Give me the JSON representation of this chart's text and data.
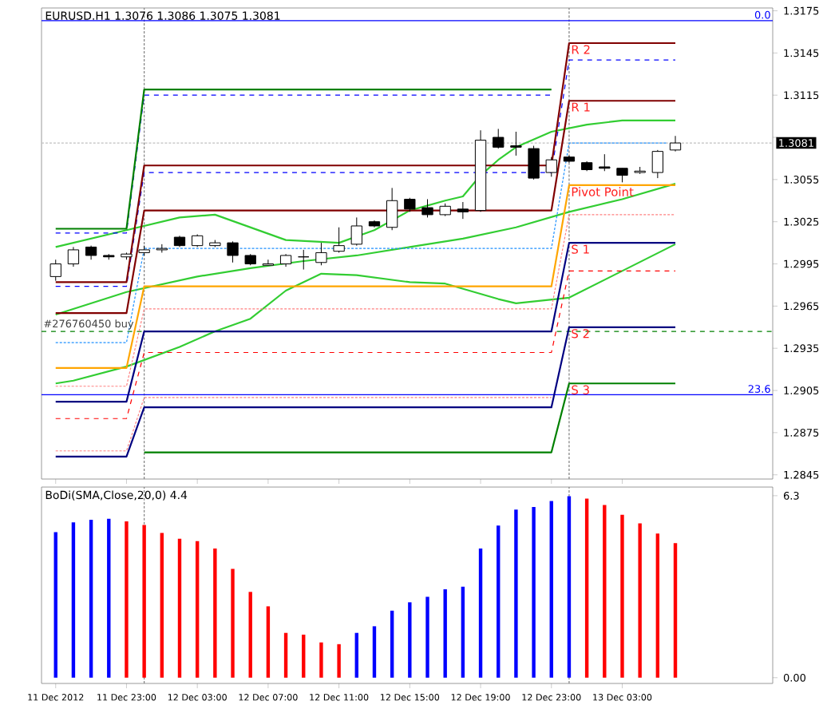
{
  "chart_data": [
    {
      "type": "candlestick",
      "title": "EURUSD.H1  1.3076 1.3086 1.3075 1.3081",
      "x": [
        "2012-12-11T19:00",
        "2012-12-11T20:00",
        "2012-12-11T21:00",
        "2012-12-11T22:00",
        "2012-12-11T23:00",
        "2012-12-12T00:00",
        "2012-12-12T01:00",
        "2012-12-12T02:00",
        "2012-12-12T03:00",
        "2012-12-12T04:00",
        "2012-12-12T05:00",
        "2012-12-12T06:00",
        "2012-12-12T07:00",
        "2012-12-12T08:00",
        "2012-12-12T09:00",
        "2012-12-12T10:00",
        "2012-12-12T11:00",
        "2012-12-12T12:00",
        "2012-12-12T13:00",
        "2012-12-12T14:00",
        "2012-12-12T15:00",
        "2012-12-12T16:00",
        "2012-12-12T17:00",
        "2012-12-12T18:00",
        "2012-12-12T19:00",
        "2012-12-12T20:00",
        "2012-12-12T21:00",
        "2012-12-12T22:00",
        "2012-12-12T23:00",
        "2012-12-13T00:00",
        "2012-12-13T01:00",
        "2012-12-13T02:00",
        "2012-12-13T03:00",
        "2012-12-13T04:00",
        "2012-12-13T05:00",
        "2012-12-13T06:00"
      ],
      "ohlc": [
        [
          1.2986,
          1.2998,
          1.2983,
          1.2995
        ],
        [
          1.2995,
          1.3007,
          1.2993,
          1.3005
        ],
        [
          1.3007,
          1.3008,
          1.2998,
          1.3001
        ],
        [
          1.3001,
          1.3002,
          1.2998,
          1.3
        ],
        [
          1.3,
          1.3003,
          1.2998,
          1.3002
        ],
        [
          1.3003,
          1.3008,
          1.3001,
          1.3005
        ],
        [
          1.3005,
          1.3009,
          1.3003,
          1.3006
        ],
        [
          1.3014,
          1.3015,
          1.3007,
          1.3008
        ],
        [
          1.3008,
          1.3016,
          1.3007,
          1.3015
        ],
        [
          1.3008,
          1.3012,
          1.3007,
          1.301
        ],
        [
          1.301,
          1.3011,
          1.2996,
          1.3001
        ],
        [
          1.3001,
          1.3002,
          1.2994,
          1.2995
        ],
        [
          1.2994,
          1.2998,
          1.2994,
          1.2995
        ],
        [
          1.2995,
          1.3002,
          1.2993,
          1.3001
        ],
        [
          1.3,
          1.3005,
          1.2991,
          1.3
        ],
        [
          1.2996,
          1.301,
          1.2994,
          1.3003
        ],
        [
          1.3004,
          1.3021,
          1.3003,
          1.3008
        ],
        [
          1.3009,
          1.3028,
          1.3008,
          1.3022
        ],
        [
          1.3025,
          1.3026,
          1.3021,
          1.3022
        ],
        [
          1.3021,
          1.3049,
          1.3019,
          1.304
        ],
        [
          1.3041,
          1.3042,
          1.3032,
          1.3034
        ],
        [
          1.3035,
          1.3041,
          1.3028,
          1.303
        ],
        [
          1.303,
          1.3038,
          1.3029,
          1.3036
        ],
        [
          1.3034,
          1.3039,
          1.3027,
          1.3032
        ],
        [
          1.3033,
          1.309,
          1.3032,
          1.3083
        ],
        [
          1.3085,
          1.3091,
          1.3077,
          1.3078
        ],
        [
          1.3079,
          1.3089,
          1.3072,
          1.3078
        ],
        [
          1.3077,
          1.3079,
          1.3055,
          1.3056
        ],
        [
          1.306,
          1.3071,
          1.3057,
          1.3069
        ],
        [
          1.3071,
          1.3072,
          1.3067,
          1.3068
        ],
        [
          1.3067,
          1.3068,
          1.3061,
          1.3062
        ],
        [
          1.3064,
          1.3073,
          1.3061,
          1.3063
        ],
        [
          1.3063,
          1.3063,
          1.3053,
          1.3058
        ],
        [
          1.306,
          1.3064,
          1.3059,
          1.3061
        ],
        [
          1.306,
          1.3076,
          1.3056,
          1.3075
        ],
        [
          1.3076,
          1.3086,
          1.3075,
          1.3081
        ]
      ],
      "xlim": [
        "2012-12-11T18:12",
        "2012-12-13T11:30"
      ],
      "ylim": [
        1.2842,
        1.3177
      ],
      "xticks": [
        {
          "value": "2012-12-11T19:00",
          "label": null
        },
        {
          "value": "2012-12-11T23:00",
          "label": null
        },
        {
          "value": "2012-12-12T03:00",
          "label": null
        },
        {
          "value": "2012-12-12T07:00",
          "label": null
        },
        {
          "value": "2012-12-12T11:00",
          "label": null
        },
        {
          "value": "2012-12-12T15:00",
          "label": null
        },
        {
          "value": "2012-12-12T19:00",
          "label": null
        },
        {
          "value": "2012-12-12T23:00",
          "label": null
        },
        {
          "value": "2012-12-13T03:00",
          "label": null
        }
      ],
      "yticks": [
        1.3175,
        1.3145,
        1.3115,
        {
          "value": 1.3085,
          "label": null
        },
        1.3055,
        1.3025,
        1.2995,
        1.2965,
        1.2935,
        1.2905,
        1.2875,
        1.2845
      ],
      "tick_labels": "y",
      "series": [
        {
          "type": "line",
          "color": "#32cd32",
          "x": [
            "2012-12-11T19:00",
            "2012-12-11T23:00",
            "2012-12-12T02:00",
            "2012-12-12T04:00",
            "2012-12-12T06:00",
            "2012-12-12T08:00",
            "2012-12-12T11:00",
            "2012-12-12T13:00",
            "2012-12-12T15:00",
            "2012-12-12T17:00",
            "2012-12-12T18:00",
            "2012-12-12T19:00",
            "2012-12-12T20:00",
            "2012-12-12T21:00",
            "2012-12-12T23:00",
            "2012-12-13T01:00",
            "2012-12-13T03:00",
            "2012-12-13T06:00"
          ],
          "values": [
            1.3007,
            1.3019,
            1.3028,
            1.303,
            1.3021,
            1.3012,
            1.301,
            1.3019,
            1.3033,
            1.304,
            1.3043,
            1.3058,
            1.3069,
            1.3078,
            1.3089,
            1.3094,
            1.3097,
            1.3097
          ]
        },
        {
          "type": "line",
          "color": "#32cd32",
          "x": [
            "2012-12-11T19:00",
            "2012-12-11T23:00",
            "2012-12-12T03:00",
            "2012-12-12T06:00",
            "2012-12-12T09:00",
            "2012-12-12T12:00",
            "2012-12-12T15:00",
            "2012-12-12T18:00",
            "2012-12-12T21:00",
            "2012-12-13T00:00",
            "2012-12-13T03:00",
            "2012-12-13T06:00"
          ],
          "values": [
            1.2959,
            1.2975,
            1.2986,
            1.2992,
            1.2997,
            1.3001,
            1.3007,
            1.3013,
            1.3021,
            1.3032,
            1.3041,
            1.3052
          ]
        },
        {
          "type": "line",
          "color": "#32cd32",
          "x": [
            "2012-12-11T19:00",
            "2012-12-11T20:00",
            "2012-12-11T23:00",
            "2012-12-12T02:00",
            "2012-12-12T04:00",
            "2012-12-12T06:00",
            "2012-12-12T08:00",
            "2012-12-12T10:00",
            "2012-12-12T12:00",
            "2012-12-12T15:00",
            "2012-12-12T17:00",
            "2012-12-12T20:00",
            "2012-12-12T21:00",
            "2012-12-13T00:00",
            "2012-12-13T03:00",
            "2012-12-13T06:00"
          ],
          "values": [
            1.291,
            1.2912,
            1.2922,
            1.2936,
            1.2947,
            1.2956,
            1.2976,
            1.2988,
            1.2987,
            1.2982,
            1.2981,
            1.297,
            1.2967,
            1.2971,
            1.299,
            1.3009
          ]
        },
        {
          "type": "line",
          "color": "#0000ff",
          "line_style": "dashed",
          "x": [
            "2012-12-11T19:00",
            "2012-12-11T23:00",
            "2012-12-12T00:00",
            "2012-12-12T23:00"
          ],
          "values": [
            1.3017,
            1.3017,
            1.3115,
            1.3115
          ]
        },
        {
          "type": "line",
          "color": "#0000ff",
          "line_style": "dashed",
          "x": [
            "2012-12-11T19:00",
            "2012-12-11T23:00",
            "2012-12-12T00:00",
            "2012-12-12T23:00",
            "2012-12-13T00:00",
            "2012-12-13T06:00"
          ],
          "values": [
            1.2979,
            1.2979,
            1.306,
            1.306,
            1.314,
            1.314
          ]
        },
        {
          "type": "line",
          "color": "#1e90ff",
          "line_style": "dotted",
          "x": [
            "2012-12-11T19:00",
            "2012-12-11T23:00",
            "2012-12-12T00:00",
            "2012-12-12T23:00",
            "2012-12-13T00:00",
            "2012-12-13T05:30"
          ],
          "values": [
            1.2939,
            1.2939,
            1.3006,
            1.3006,
            1.3081,
            1.3081
          ]
        },
        {
          "type": "line",
          "color": "#ff8080",
          "line_style": "dotted",
          "x": [
            "2012-12-11T19:00",
            "2012-12-11T23:00",
            "2012-12-12T00:00",
            "2012-12-12T23:00",
            "2012-12-13T00:00",
            "2012-12-13T06:00"
          ],
          "values": [
            1.2908,
            1.2908,
            1.2963,
            1.2963,
            1.303,
            1.303
          ]
        },
        {
          "type": "line",
          "color": "#ff0000",
          "line_style": "dashed",
          "x": [
            "2012-12-11T19:00",
            "2012-12-11T23:00",
            "2012-12-12T00:00",
            "2012-12-12T23:00",
            "2012-12-13T00:00",
            "2012-12-13T06:00"
          ],
          "values": [
            1.2885,
            1.2885,
            1.2932,
            1.2932,
            1.299,
            1.299
          ]
        },
        {
          "type": "line",
          "color": "#ff8080",
          "line_style": "dotted",
          "x": [
            "2012-12-11T19:00",
            "2012-12-11T23:00",
            "2012-12-12T00:00",
            "2012-12-12T23:00"
          ],
          "values": [
            1.2862,
            1.2862,
            1.29,
            1.29
          ]
        },
        {
          "type": "line",
          "color": "#008000",
          "x": [
            "2012-12-11T19:00",
            "2012-12-11T23:00",
            "2012-12-12T00:00",
            "2012-12-12T23:00"
          ],
          "values": [
            1.302,
            1.302,
            1.3119,
            1.3119
          ]
        },
        {
          "type": "line",
          "name": "R 2",
          "color": "#800000",
          "x": [
            "2012-12-11T19:00",
            "2012-12-11T23:00",
            "2012-12-12T00:00",
            "2012-12-12T23:00",
            "2012-12-13T00:00",
            "2012-12-13T06:00"
          ],
          "values": [
            1.2982,
            1.2982,
            1.3065,
            1.3065,
            1.3152,
            1.3152
          ]
        },
        {
          "type": "line",
          "name": "R 1",
          "color": "#800000",
          "x": [
            "2012-12-11T19:00",
            "2012-12-11T23:00",
            "2012-12-12T00:00",
            "2012-12-12T23:00",
            "2012-12-13T00:00",
            "2012-12-13T06:00"
          ],
          "values": [
            1.296,
            1.296,
            1.3033,
            1.3033,
            1.3111,
            1.3111
          ]
        },
        {
          "type": "line",
          "name": "Pivot Point",
          "color": "#ffa500",
          "x": [
            "2012-12-11T19:00",
            "2012-12-11T23:00",
            "2012-12-12T00:00",
            "2012-12-12T23:00",
            "2012-12-13T00:00",
            "2012-12-13T06:00"
          ],
          "values": [
            1.2921,
            1.2921,
            1.2979,
            1.2979,
            1.3051,
            1.3051
          ]
        },
        {
          "type": "line",
          "name": "S 1",
          "color": "#000080",
          "x": [
            "2012-12-11T19:00",
            "2012-12-11T23:00",
            "2012-12-12T00:00",
            "2012-12-12T23:00",
            "2012-12-13T00:00",
            "2012-12-13T06:00"
          ],
          "values": [
            1.2897,
            1.2897,
            1.2947,
            1.2947,
            1.301,
            1.301
          ]
        },
        {
          "type": "line",
          "name": "S 2",
          "color": "#000080",
          "x": [
            "2012-12-11T19:00",
            "2012-12-11T23:00",
            "2012-12-12T00:00",
            "2012-12-12T23:00",
            "2012-12-13T00:00",
            "2012-12-13T06:00"
          ],
          "values": [
            1.2858,
            1.2858,
            1.2893,
            1.2893,
            1.295,
            1.295
          ]
        },
        {
          "type": "line",
          "name": "S 3",
          "color": "#008000",
          "x": [
            "2012-12-12T00:00",
            "2012-12-12T23:00",
            "2012-12-13T00:00",
            "2012-12-13T06:00"
          ],
          "values": [
            1.2861,
            1.2861,
            1.291,
            1.291
          ]
        }
      ],
      "ref_lines": [
        {
          "axis": "x",
          "value": "2012-12-12T00:00",
          "color": "#808080",
          "line_style": "dotted"
        },
        {
          "axis": "x",
          "value": "2012-12-13T00:00",
          "color": "#808080",
          "line_style": "dotted"
        },
        {
          "axis": "y",
          "value": 1.3168,
          "color": "#0000ff",
          "line_style": "solid"
        },
        {
          "axis": "y",
          "value": 1.2902,
          "color": "#0000ff",
          "line_style": "solid"
        },
        {
          "axis": "y",
          "value": 1.2947,
          "label": "#276760450 buy",
          "color": "#008000",
          "line_style": "dashed"
        },
        {
          "axis": "y",
          "value": 1.3081,
          "label": "1.3081",
          "color": "#c0c0c0",
          "line_style": "dotted"
        }
      ],
      "annotations": [
        {
          "text": "0.0",
          "x": "2012-12-13T11:30",
          "y": 1.3168
        },
        {
          "text": "23.6",
          "x": "2012-12-13T11:30",
          "y": 1.2902
        }
      ]
    },
    {
      "type": "bar",
      "title": "BoDi(SMA,Close,20,0) 4.4",
      "x": [
        "2012-12-11T19:00",
        "2012-12-11T20:00",
        "2012-12-11T21:00",
        "2012-12-11T22:00",
        "2012-12-11T23:00",
        "2012-12-12T00:00",
        "2012-12-12T01:00",
        "2012-12-12T02:00",
        "2012-12-12T03:00",
        "2012-12-12T04:00",
        "2012-12-12T05:00",
        "2012-12-12T06:00",
        "2012-12-12T07:00",
        "2012-12-12T08:00",
        "2012-12-12T09:00",
        "2012-12-12T10:00",
        "2012-12-12T11:00",
        "2012-12-12T12:00",
        "2012-12-12T13:00",
        "2012-12-12T14:00",
        "2012-12-12T15:00",
        "2012-12-12T16:00",
        "2012-12-12T17:00",
        "2012-12-12T18:00",
        "2012-12-12T19:00",
        "2012-12-12T20:00",
        "2012-12-12T21:00",
        "2012-12-12T22:00",
        "2012-12-12T23:00",
        "2012-12-13T00:00",
        "2012-12-13T01:00",
        "2012-12-13T02:00",
        "2012-12-13T03:00",
        "2012-12-13T04:00",
        "2012-12-13T05:00",
        "2012-12-13T06:00"
      ],
      "values": [
        5.04,
        5.38,
        5.47,
        5.5,
        5.41,
        5.29,
        5.01,
        4.81,
        4.73,
        4.47,
        3.77,
        2.97,
        2.47,
        1.55,
        1.49,
        1.22,
        1.16,
        1.55,
        1.78,
        2.32,
        2.61,
        2.8,
        3.06,
        3.15,
        4.47,
        5.27,
        5.82,
        5.91,
        6.12,
        6.28,
        6.2,
        5.98,
        5.64,
        5.34,
        4.99,
        4.66
      ],
      "colors": [
        "#0000ff",
        "#0000ff",
        "#0000ff",
        "#0000ff",
        "#ff0000",
        "#ff0000",
        "#ff0000",
        "#ff0000",
        "#ff0000",
        "#ff0000",
        "#ff0000",
        "#ff0000",
        "#ff0000",
        "#ff0000",
        "#ff0000",
        "#ff0000",
        "#ff0000",
        "#0000ff",
        "#0000ff",
        "#0000ff",
        "#0000ff",
        "#0000ff",
        "#0000ff",
        "#0000ff",
        "#0000ff",
        "#0000ff",
        "#0000ff",
        "#0000ff",
        "#0000ff",
        "#0000ff",
        "#ff0000",
        "#ff0000",
        "#ff0000",
        "#ff0000",
        "#ff0000",
        "#ff0000"
      ],
      "xlim": [
        "2012-12-11T18:12",
        "2012-12-13T11:30"
      ],
      "ylim": [
        -0.2,
        6.6
      ],
      "xticks": [
        {
          "value": "2012-12-11T19:00",
          "label": "11 Dec 2012"
        },
        {
          "value": "2012-12-11T23:00",
          "label": "11 Dec 23:00"
        },
        {
          "value": "2012-12-12T03:00",
          "label": "12 Dec 03:00"
        },
        {
          "value": "2012-12-12T07:00",
          "label": "12 Dec 07:00"
        },
        {
          "value": "2012-12-12T11:00",
          "label": "12 Dec 11:00"
        },
        {
          "value": "2012-12-12T15:00",
          "label": "12 Dec 15:00"
        },
        {
          "value": "2012-12-12T19:00",
          "label": "12 Dec 19:00"
        },
        {
          "value": "2012-12-12T23:00",
          "label": "12 Dec 23:00"
        },
        {
          "value": "2012-12-13T03:00",
          "label": "13 Dec 03:00"
        }
      ],
      "yticks": [
        6.3,
        {
          "value": 0,
          "label": "0.00"
        }
      ],
      "ref_lines": [
        {
          "axis": "x",
          "value": "2012-12-12T00:00",
          "color": "#808080",
          "line_style": "dotted"
        },
        {
          "axis": "x",
          "value": "2012-12-13T00:00",
          "color": "#808080",
          "line_style": "dotted"
        }
      ]
    }
  ]
}
